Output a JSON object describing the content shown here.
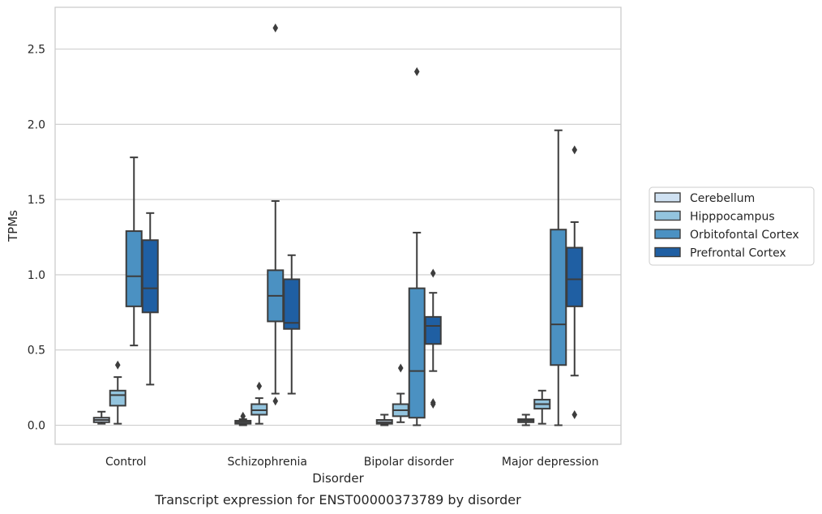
{
  "caption": "Transcript expression for ENST00000373789 by disorder",
  "chart_data": {
    "type": "box",
    "xlabel": "Disorder",
    "ylabel": "TPMs",
    "ylim": [
      -0.13,
      2.78
    ],
    "yticks": [
      "0.0",
      "0.5",
      "1.0",
      "1.5",
      "2.0",
      "2.5"
    ],
    "categories": [
      "Control",
      "Schizophrenia",
      "Bipolar disorder",
      "Major depression"
    ],
    "grid": "horizontal",
    "legend_position": "right",
    "series": [
      {
        "name": "Cerebellum",
        "color": "#cfe1f2",
        "boxes": [
          {
            "whislo": 0.01,
            "q1": 0.02,
            "med": 0.035,
            "q3": 0.05,
            "whishi": 0.09,
            "fliers": []
          },
          {
            "whislo": 0.0,
            "q1": 0.01,
            "med": 0.02,
            "q3": 0.03,
            "whishi": 0.04,
            "fliers": [
              0.06
            ]
          },
          {
            "whislo": 0.0,
            "q1": 0.01,
            "med": 0.02,
            "q3": 0.035,
            "whishi": 0.07,
            "fliers": []
          },
          {
            "whislo": 0.0,
            "q1": 0.02,
            "med": 0.03,
            "q3": 0.04,
            "whishi": 0.07,
            "fliers": []
          }
        ]
      },
      {
        "name": "Hipppocampus",
        "color": "#93c4de",
        "boxes": [
          {
            "whislo": 0.01,
            "q1": 0.13,
            "med": 0.2,
            "q3": 0.23,
            "whishi": 0.32,
            "fliers": [
              0.4
            ]
          },
          {
            "whislo": 0.01,
            "q1": 0.07,
            "med": 0.1,
            "q3": 0.14,
            "whishi": 0.18,
            "fliers": [
              0.26
            ]
          },
          {
            "whislo": 0.02,
            "q1": 0.06,
            "med": 0.1,
            "q3": 0.14,
            "whishi": 0.21,
            "fliers": [
              0.38
            ]
          },
          {
            "whislo": 0.01,
            "q1": 0.11,
            "med": 0.14,
            "q3": 0.17,
            "whishi": 0.23,
            "fliers": []
          }
        ]
      },
      {
        "name": "Orbitofontal Cortex",
        "color": "#4b91c2",
        "boxes": [
          {
            "whislo": 0.53,
            "q1": 0.79,
            "med": 0.99,
            "q3": 1.29,
            "whishi": 1.78,
            "fliers": []
          },
          {
            "whislo": 0.21,
            "q1": 0.69,
            "med": 0.86,
            "q3": 1.03,
            "whishi": 1.49,
            "fliers": [
              0.16,
              2.64
            ]
          },
          {
            "whislo": 0.0,
            "q1": 0.05,
            "med": 0.36,
            "q3": 0.91,
            "whishi": 1.28,
            "fliers": [
              2.35
            ]
          },
          {
            "whislo": 0.0,
            "q1": 0.4,
            "med": 0.67,
            "q3": 1.3,
            "whishi": 1.96,
            "fliers": []
          }
        ]
      },
      {
        "name": "Prefrontal Cortex",
        "color": "#1f5fa3",
        "boxes": [
          {
            "whislo": 0.27,
            "q1": 0.75,
            "med": 0.91,
            "q3": 1.23,
            "whishi": 1.41,
            "fliers": []
          },
          {
            "whislo": 0.21,
            "q1": 0.64,
            "med": 0.68,
            "q3": 0.97,
            "whishi": 1.13,
            "fliers": []
          },
          {
            "whislo": 0.36,
            "q1": 0.54,
            "med": 0.66,
            "q3": 0.72,
            "whishi": 0.88,
            "fliers": [
              0.14,
              0.15,
              1.01
            ]
          },
          {
            "whislo": 0.33,
            "q1": 0.79,
            "med": 0.97,
            "q3": 1.18,
            "whishi": 1.35,
            "fliers": [
              0.07,
              1.83
            ]
          }
        ]
      }
    ]
  }
}
